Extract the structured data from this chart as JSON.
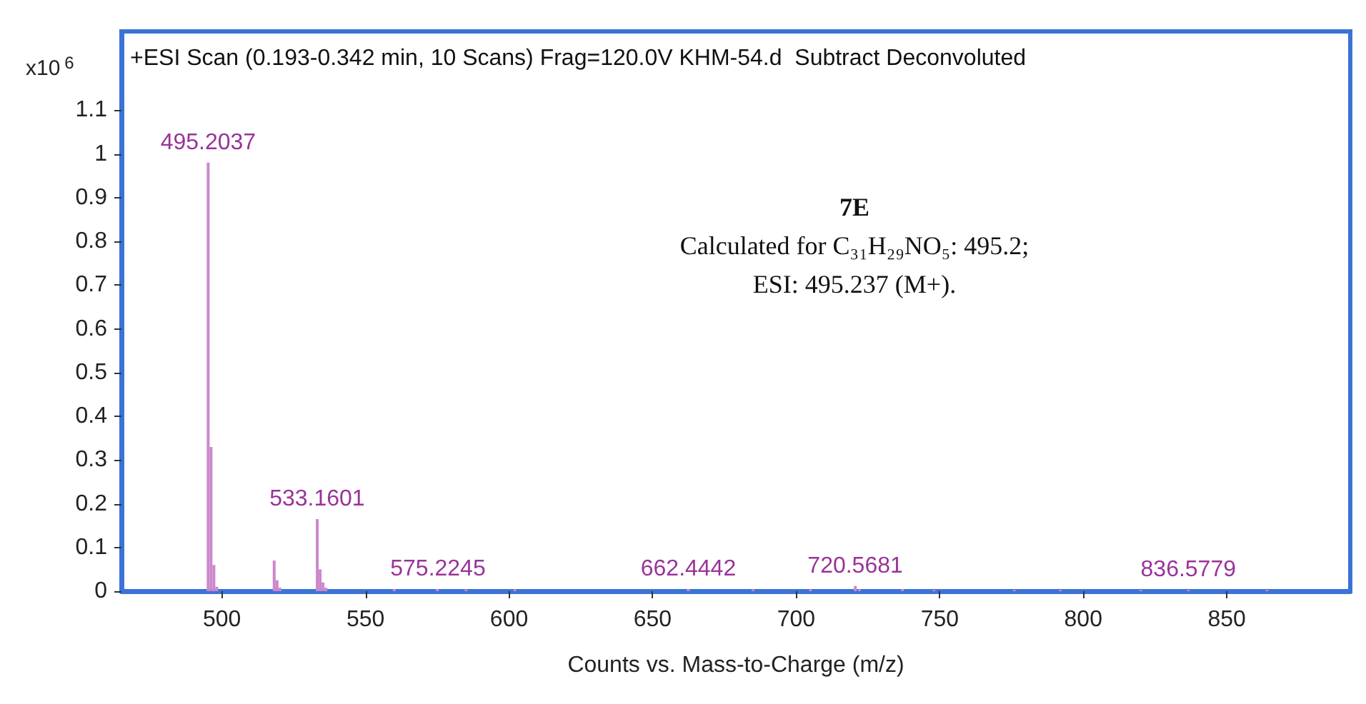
{
  "chart_data": {
    "type": "bar",
    "title": "+ESI Scan (0.193-0.342 min, 10 Scans) Frag=120.0V KHM-54.d  Subtract Deconvoluted",
    "xlabel": "Counts vs. Mass-to-Charge (m/z)",
    "ylabel": "x10$^{6}$",
    "x": [
      495.2,
      496.2,
      497.2,
      498.2,
      518.2,
      519.2,
      520.2,
      533.2,
      534.2,
      535.2,
      536.2,
      560,
      575,
      585,
      602,
      662.4,
      685,
      705,
      720.6,
      722,
      737,
      748,
      776,
      792,
      820,
      836.6,
      864
    ],
    "values": [
      0.98,
      0.33,
      0.06,
      0.01,
      0.07,
      0.025,
      0.008,
      0.165,
      0.05,
      0.02,
      0.008,
      0.005,
      0.005,
      0.004,
      0.004,
      0.005,
      0.004,
      0.004,
      0.012,
      0.004,
      0.005,
      0.003,
      0.003,
      0.003,
      0.003,
      0.003,
      0.003
    ],
    "color": "#cc88cc",
    "xlim": [
      465,
      893
    ],
    "xticks": [
      500,
      550,
      600,
      650,
      700,
      750,
      800,
      850
    ],
    "ylim": [
      0,
      1.28
    ],
    "yticks": [
      0,
      0.1,
      0.2,
      0.3,
      0.4,
      0.5,
      0.6,
      0.7,
      0.8,
      0.9,
      1,
      1.1
    ],
    "annotations": [
      {
        "text": "495.2037",
        "x": 495.2037,
        "y": 0.98
      },
      {
        "text": "533.1601",
        "x": 533.1601,
        "y": 0.165
      },
      {
        "text": "575.2245",
        "x": 575.2245,
        "y": 0.005
      },
      {
        "text": "662.4442",
        "x": 662.4442,
        "y": 0.005
      },
      {
        "text": "720.5681",
        "x": 720.5681,
        "y": 0.012
      },
      {
        "text": "836.5779",
        "x": 836.5779,
        "y": 0.003
      },
      "7E",
      "Calculated for C₃₁H₂₉NO₅: 495.2;",
      "ESI: 495.237 (M+)."
    ]
  }
}
